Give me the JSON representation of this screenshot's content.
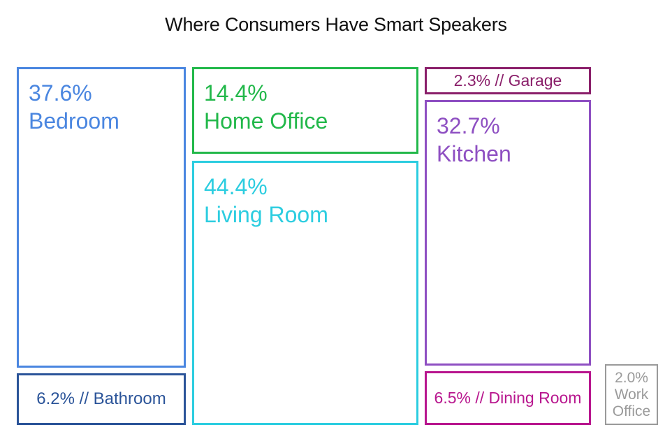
{
  "chart_data": {
    "type": "treemap",
    "title": "Where Consumers Have Smart Speakers",
    "items": [
      {
        "name": "Bedroom",
        "value": 37.6,
        "value_label": "37.6%",
        "color": "#4a86e0"
      },
      {
        "name": "Bathroom",
        "value": 6.2,
        "value_label": "6.2% // Bathroom",
        "color": "#2b5499"
      },
      {
        "name": "Home Office",
        "value": 14.4,
        "value_label": "14.4%",
        "color": "#22b84a"
      },
      {
        "name": "Living Room",
        "value": 44.4,
        "value_label": "44.4%",
        "color": "#2ccde0"
      },
      {
        "name": "Garage",
        "value": 2.3,
        "value_label": "2.3% // Garage",
        "color": "#8a1f6a"
      },
      {
        "name": "Kitchen",
        "value": 32.7,
        "value_label": "32.7%",
        "color": "#8e4fc2"
      },
      {
        "name": "Dining Room",
        "value": 6.5,
        "value_label": "6.5% // Dining Room",
        "color": "#b8168e"
      },
      {
        "name": "Work Office",
        "value": 2.0,
        "value_label_lines": [
          "2.0%",
          "Work",
          "Office"
        ],
        "color": "#9a9a9a"
      }
    ]
  }
}
